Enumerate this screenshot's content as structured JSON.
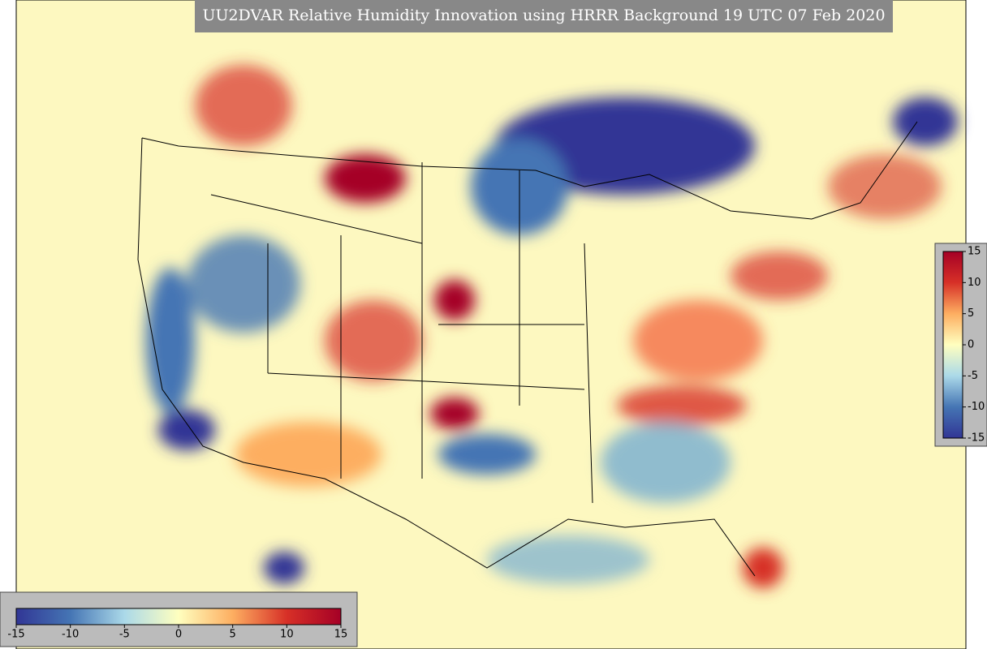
{
  "title": "UU2DVAR Relative Humidity Innovation using HRRR Background 19 UTC 07 Feb 2020",
  "colorbar": {
    "lim": [
      -15,
      15
    ],
    "ticks": [
      -15,
      -10,
      -5,
      0,
      5,
      10,
      15
    ],
    "colors": [
      "#313695",
      "#4575b4",
      "#abd9e9",
      "#ffffbf",
      "#fdae61",
      "#d73027",
      "#a50026"
    ]
  },
  "colorbar_right": {
    "lim": [
      -15,
      15
    ],
    "ticks": [
      -15,
      -10,
      -5,
      0,
      5,
      10,
      15
    ]
  }
}
